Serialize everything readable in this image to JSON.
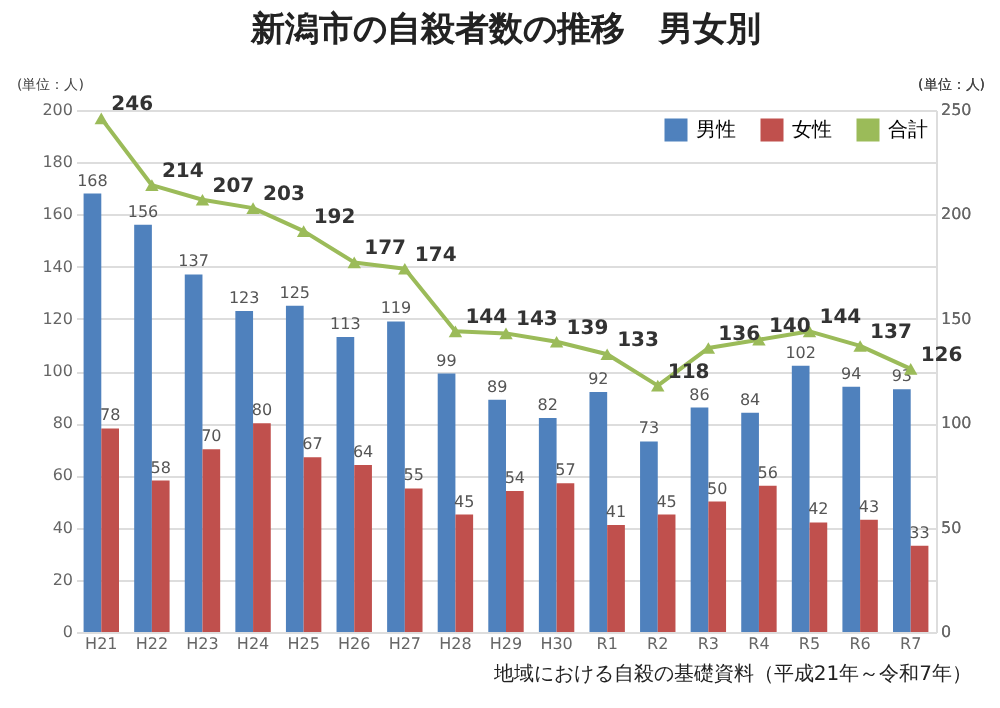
{
  "chart_data": {
    "type": "bar",
    "title": "新潟市の自殺者数の推移　男女別",
    "ylabel": "(単位：人)",
    "y2label": "(単位：人)",
    "categories": [
      "H21",
      "H22",
      "H23",
      "H24",
      "H25",
      "H26",
      "H27",
      "H28",
      "H29",
      "H30",
      "R1",
      "R2",
      "R3",
      "R4",
      "R5",
      "R6",
      "R7"
    ],
    "series": [
      {
        "name": "男性",
        "color": "#4f81bd",
        "values": [
          168,
          156,
          137,
          123,
          125,
          113,
          119,
          99,
          89,
          82,
          92,
          73,
          86,
          84,
          102,
          94,
          93
        ]
      },
      {
        "name": "女性",
        "color": "#c0504d",
        "values": [
          78,
          58,
          70,
          80,
          67,
          64,
          55,
          45,
          54,
          57,
          41,
          45,
          50,
          56,
          42,
          43,
          33
        ]
      },
      {
        "name": "合計",
        "type": "line",
        "axis": "y2",
        "color": "#9bbb59",
        "marker": "triangle",
        "line_style": "solid",
        "values": [
          246,
          214,
          207,
          203,
          192,
          177,
          174,
          144,
          143,
          139,
          133,
          118,
          136,
          140,
          144,
          137,
          126
        ]
      }
    ],
    "ylim": [
      0,
      200
    ],
    "yticks": [
      0,
      20,
      40,
      60,
      80,
      100,
      120,
      140,
      160,
      180,
      200
    ],
    "y2lim": [
      0,
      250
    ],
    "y2ticks": [
      0,
      50,
      100,
      150,
      200,
      250
    ],
    "grid": "y",
    "legend": "top right",
    "data_labels": true,
    "annotations": [
      "地域における自殺の基礎資料（平成21年～令和7年）"
    ]
  }
}
